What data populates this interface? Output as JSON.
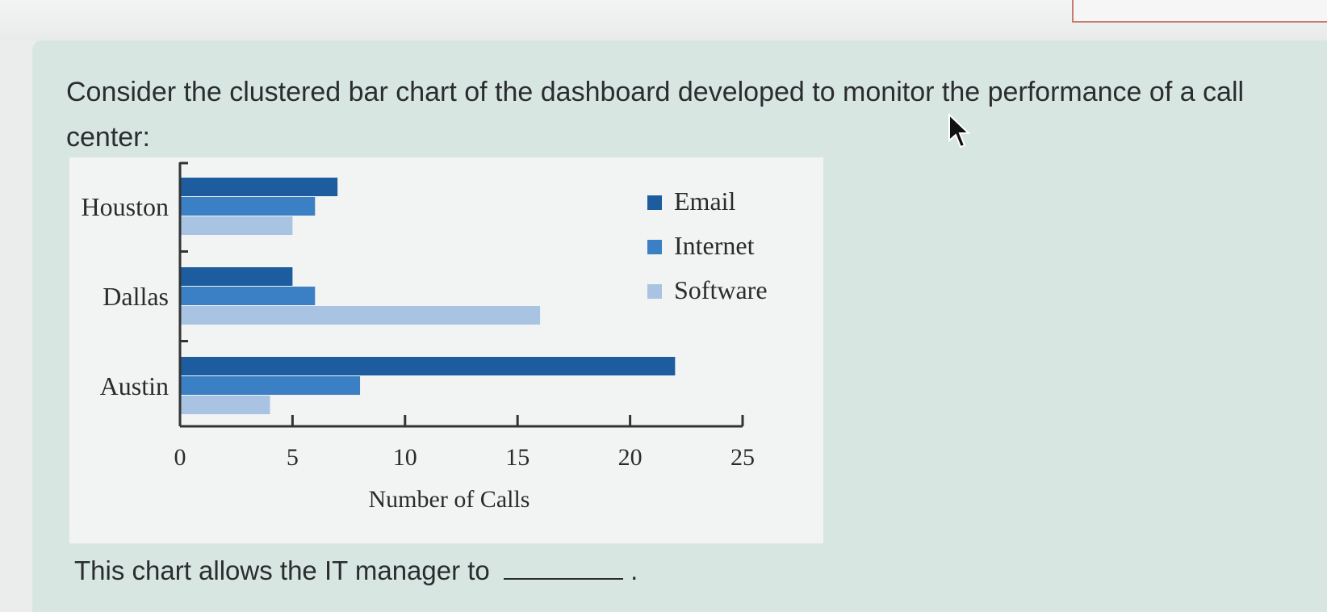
{
  "question": {
    "text": "Consider the clustered bar chart of the dashboard developed to monitor the performance of a call center:"
  },
  "footer": {
    "text": "This chart allows the IT manager to",
    "end_punct": "."
  },
  "colors": {
    "email": "#1d5c9e",
    "internet": "#3b7fc4",
    "software": "#a8c4e2",
    "card_bg": "#d8e6e2",
    "chart_bg": "#f2f4f4"
  },
  "chart_data": {
    "type": "bar",
    "orientation": "horizontal",
    "categories": [
      "Houston",
      "Dallas",
      "Austin"
    ],
    "series": [
      {
        "name": "Email",
        "values": [
          7,
          5,
          22
        ]
      },
      {
        "name": "Internet",
        "values": [
          6,
          6,
          8
        ]
      },
      {
        "name": "Software",
        "values": [
          5,
          16,
          4
        ]
      }
    ],
    "xlabel": "Number of Calls",
    "xticks": [
      "0",
      "5",
      "10",
      "15",
      "20",
      "25"
    ],
    "xlim": [
      0,
      25
    ],
    "legend_position": "top-right",
    "grid": false
  }
}
